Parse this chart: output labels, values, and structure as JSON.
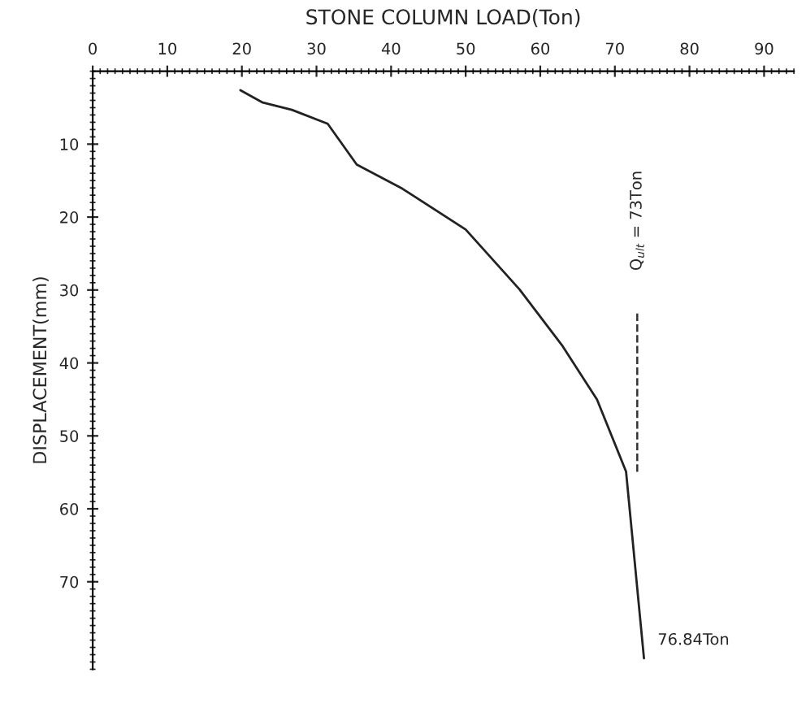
{
  "chart_data": {
    "type": "line",
    "xlabel": "STONE COLUMN LOAD(Ton)",
    "ylabel": "DISPLACEMENT(mm)",
    "x": [
      19.8,
      22.8,
      26.7,
      31.5,
      35.4,
      41.5,
      50,
      57.2,
      63,
      67.6,
      71.5,
      73.9
    ],
    "series": [
      {
        "color": "#222222",
        "values": [
          2.6,
          4.3,
          5.3,
          7.2,
          12.8,
          16.1,
          21.7,
          29.9,
          37.7,
          45,
          54.9,
          80.5
        ]
      }
    ],
    "xlim": [
      0,
      94
    ],
    "ylim": [
      82,
      0
    ],
    "xticks": [
      0,
      10,
      20,
      30,
      40,
      50,
      60,
      70,
      80,
      90
    ],
    "yticks": [
      10,
      20,
      30,
      40,
      50,
      60,
      70
    ],
    "ref_lines": [
      {
        "axis": "x",
        "value": 73,
        "label": "Q$_{ult}$ = 73Ton",
        "line_style": "dashed"
      }
    ],
    "annotations": [
      {
        "text": "76.84Ton",
        "x": 73.9,
        "y": 80.5
      }
    ],
    "grid": false,
    "legend": false,
    "marker": "none",
    "line_style": "solid"
  }
}
